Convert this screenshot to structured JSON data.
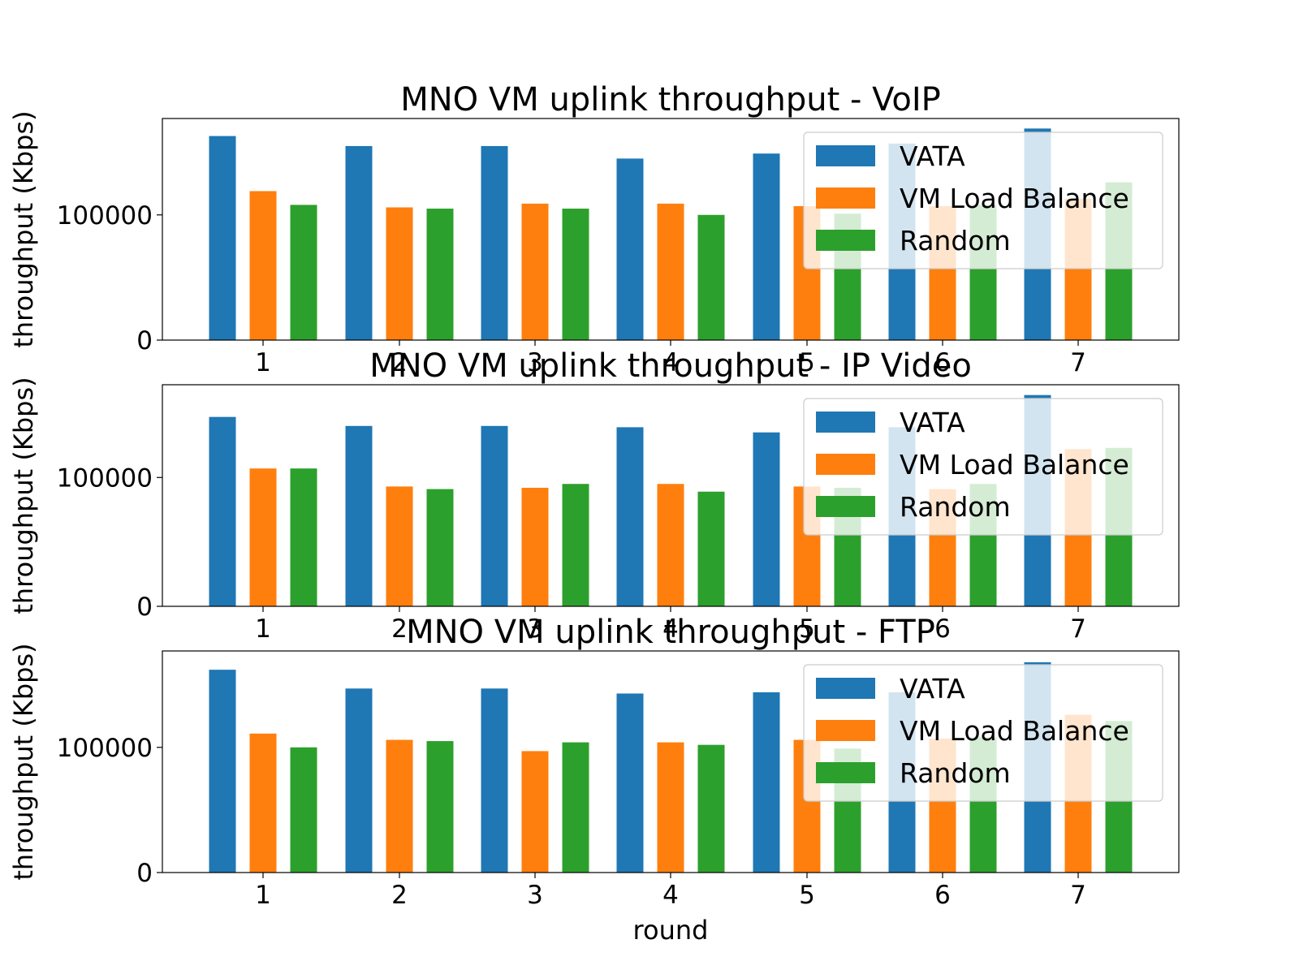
{
  "colors": {
    "VATA": "#1f77b4",
    "VM Load Balance": "#ff7f0e",
    "Random": "#2ca02c"
  },
  "chart_data": [
    {
      "type": "bar",
      "title": "MNO VM uplink throughput - VoIP",
      "xlabel": "",
      "ylabel": "throughput (Kbps)",
      "categories": [
        "1",
        "2",
        "3",
        "4",
        "5",
        "6",
        "7"
      ],
      "yticks": [
        "0",
        "100000"
      ],
      "ylim": [
        0,
        177000
      ],
      "legend": "top-right",
      "series": [
        {
          "name": "VATA",
          "values": [
            163000,
            155000,
            155000,
            145000,
            149000,
            157000,
            169000
          ]
        },
        {
          "name": "VM Load Balance",
          "values": [
            119000,
            106000,
            109000,
            109000,
            107000,
            107000,
            113000
          ]
        },
        {
          "name": "Random",
          "values": [
            108000,
            105000,
            105000,
            100000,
            101000,
            108000,
            126000
          ]
        }
      ]
    },
    {
      "type": "bar",
      "title": "MNO VM uplink throughput - IP Video",
      "xlabel": "",
      "ylabel": "throughput (Kbps)",
      "categories": [
        "1",
        "2",
        "3",
        "4",
        "5",
        "6",
        "7"
      ],
      "yticks": [
        "0",
        "100000"
      ],
      "ylim": [
        0,
        172000
      ],
      "legend": "top-right",
      "series": [
        {
          "name": "VATA",
          "values": [
            147000,
            140000,
            140000,
            139000,
            135000,
            139000,
            164000
          ]
        },
        {
          "name": "VM Load Balance",
          "values": [
            107000,
            93000,
            92000,
            95000,
            93000,
            91000,
            122000
          ]
        },
        {
          "name": "Random",
          "values": [
            107000,
            91000,
            95000,
            89000,
            92000,
            95000,
            123000
          ]
        }
      ]
    },
    {
      "type": "bar",
      "title": "MNO VM uplink throughput - FTP",
      "xlabel": "round",
      "ylabel": "throughput (Kbps)",
      "categories": [
        "1",
        "2",
        "3",
        "4",
        "5",
        "6",
        "7"
      ],
      "yticks": [
        "0",
        "100000"
      ],
      "ylim": [
        0,
        177000
      ],
      "legend": "top-right",
      "series": [
        {
          "name": "VATA",
          "values": [
            162000,
            147000,
            147000,
            143000,
            144000,
            144000,
            168000
          ]
        },
        {
          "name": "VM Load Balance",
          "values": [
            111000,
            106000,
            97000,
            104000,
            106000,
            107000,
            126000
          ]
        },
        {
          "name": "Random",
          "values": [
            100000,
            105000,
            104000,
            102000,
            99000,
            108000,
            121000
          ]
        }
      ]
    }
  ]
}
